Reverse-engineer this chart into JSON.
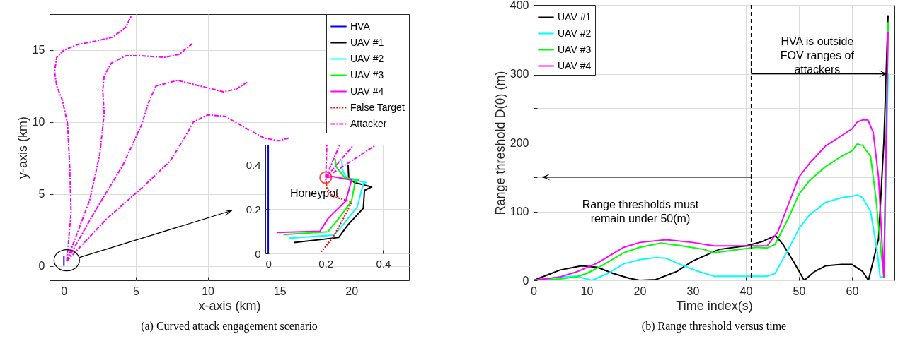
{
  "chart_data": [
    {
      "type": "line",
      "title": "(a) Curved attack engagement scenario",
      "xlabel": "x-axis (km)",
      "ylabel": "y-axis (km)",
      "xlim": [
        -1,
        24
      ],
      "ylim": [
        -1,
        17.5
      ],
      "xticks": [
        0,
        5,
        10,
        15,
        20
      ],
      "yticks": [
        0,
        5,
        10,
        15
      ],
      "grid": true,
      "legend": "top right",
      "series": [
        {
          "name": "HVA",
          "color": "#0000ff",
          "line_style": "solid",
          "x": [
            0,
            0
          ],
          "values": [
            0,
            0.7
          ]
        },
        {
          "name": "UAV #1",
          "color": "#000000",
          "line_style": "solid"
        },
        {
          "name": "UAV #2",
          "color": "#00ffff",
          "line_style": "solid"
        },
        {
          "name": "UAV #3",
          "color": "#00ff00",
          "line_style": "solid"
        },
        {
          "name": "UAV #4",
          "color": "#ff00ff",
          "line_style": "solid"
        },
        {
          "name": "False Target",
          "color": "#ff0000",
          "line_style": "dotted"
        },
        {
          "name": "Attacker",
          "color": "#ff00ff",
          "line_style": "dashdot",
          "x": [
            0.2,
            0.5,
            0.4,
            0.25,
            -0.1,
            -0.5,
            -0.65,
            -0.5,
            0,
            1.0,
            2.1,
            3.4,
            4.3,
            4.7
          ],
          "values": [
            0.34,
            3.7,
            7.0,
            9.9,
            11.5,
            12.5,
            13.5,
            14.5,
            15.0,
            15.4,
            15.6,
            15.9,
            16.6,
            17.4
          ]
        },
        {
          "color": "#ff00ff",
          "line_style": "dashdot",
          "x": [
            0.2,
            1.8,
            2.5,
            2.8,
            2.7,
            2.8,
            3.3,
            4.3,
            5.4,
            7.0,
            8.0,
            9.0
          ],
          "values": [
            0.34,
            4.6,
            7.8,
            10.6,
            12.2,
            13.2,
            14.1,
            14.6,
            14.6,
            14.5,
            14.7,
            15.5
          ]
        },
        {
          "color": "#ff00ff",
          "line_style": "dashdot",
          "x": [
            0.2,
            2.1,
            4.1,
            5.4,
            5.9,
            6.4,
            7.9,
            9.5,
            11.1,
            12.0,
            12.8
          ],
          "values": [
            0.34,
            3.7,
            7.0,
            9.8,
            11.4,
            12.5,
            12.9,
            12.5,
            12.1,
            12.3,
            12.8
          ]
        },
        {
          "color": "#ff00ff",
          "line_style": "dashdot",
          "x": [
            0.2,
            3.0,
            5.4,
            7.4,
            8.5,
            9.0,
            10.0,
            11.2,
            12.8,
            13.9,
            14.9,
            15.7
          ],
          "values": [
            0.34,
            3.3,
            5.4,
            7.3,
            9.1,
            10.0,
            10.5,
            10.4,
            9.5,
            8.9,
            8.7,
            8.9
          ]
        }
      ]
    },
    {
      "type": "line",
      "xlim": [
        -0.01,
        0.49
      ],
      "ylim": [
        0,
        0.49
      ],
      "xticks": [
        0,
        0.2,
        0.4
      ],
      "yticks": [
        0,
        0.2,
        0.4
      ],
      "grid": true,
      "annotations": [
        {
          "text": "Honeypot",
          "x": 0.2,
          "y": 0.342
        }
      ],
      "series": [
        {
          "color": "#0000ff",
          "line_style": "solid",
          "x": [
            0,
            0
          ],
          "values": [
            0,
            0.49
          ]
        },
        {
          "color": "#000000",
          "line_style": "solid",
          "x": [
            0.09,
            0.245,
            0.278,
            0.331,
            0.335,
            0.36,
            0.3,
            0.28,
            0.278
          ],
          "values": [
            0.049,
            0.072,
            0.13,
            0.204,
            0.284,
            0.3,
            0.32,
            0.342,
            0.4
          ]
        },
        {
          "color": "#00ffff",
          "line_style": "solid",
          "x": [
            0.074,
            0.229,
            0.261,
            0.31,
            0.331,
            0.34,
            0.274,
            0.257,
            0.257
          ],
          "values": [
            0.069,
            0.083,
            0.13,
            0.21,
            0.315,
            0.32,
            0.336,
            0.379,
            0.42
          ]
        },
        {
          "color": "#00ff00",
          "line_style": "solid",
          "x": [
            0.053,
            0.208,
            0.245,
            0.29,
            0.302,
            0.315,
            0.266,
            0.237,
            0.233
          ],
          "values": [
            0.085,
            0.098,
            0.157,
            0.236,
            0.32,
            0.331,
            0.342,
            0.389,
            0.426
          ]
        },
        {
          "color": "#ff00ff",
          "line_style": "solid",
          "x": [
            0.029,
            0.18,
            0.208,
            0.27,
            0.29,
            0.225,
            0.2
          ],
          "values": [
            0.095,
            0.1,
            0.157,
            0.236,
            0.331,
            0.347,
            0.342
          ]
        },
        {
          "color": "#ff0000",
          "line_style": "dotted",
          "x": [
            0,
            0.18,
            0.225,
            0.257,
            0.29,
            0.27,
            0.225,
            0.204,
            0.2
          ],
          "values": [
            0,
            0,
            0.072,
            0.146,
            0.23,
            0.24,
            0.257,
            0.294,
            0.336
          ]
        },
        {
          "color": "#ff00ff",
          "line_style": "dashdot",
          "x": [
            0.2,
            0.204
          ],
          "values": [
            0.342,
            0.49
          ]
        },
        {
          "color": "#ff00ff",
          "line_style": "dashdot",
          "x": [
            0.2,
            0.249
          ],
          "values": [
            0.342,
            0.49
          ]
        },
        {
          "color": "#ff00ff",
          "line_style": "dashdot",
          "x": [
            0.2,
            0.298
          ],
          "values": [
            0.342,
            0.49
          ]
        },
        {
          "color": "#ff00ff",
          "line_style": "dashdot",
          "x": [
            0.2,
            0.376
          ],
          "values": [
            0.342,
            0.49
          ]
        }
      ]
    },
    {
      "type": "line",
      "title": "(b) Range threshold versus time",
      "xlabel": "Time index(s)",
      "ylabel": "Range threshold D(θ) (m)",
      "xlim": [
        0,
        68
      ],
      "ylim": [
        0,
        400
      ],
      "xticks": [
        0,
        10,
        20,
        30,
        40,
        50,
        60
      ],
      "yticks": [
        0,
        {
          "value": 50,
          "label": null
        },
        100,
        {
          "value": 150,
          "label": null
        },
        200,
        {
          "value": 250,
          "label": null
        },
        300,
        {
          "value": 350,
          "label": null
        },
        400
      ],
      "grid": true,
      "legend": "top left",
      "ref_lines": [
        {
          "axis": "x",
          "value": 41,
          "color": "#000000",
          "line_style": "dashed"
        }
      ],
      "annotations": [
        "Range thresholds must\nremain under 50(m)",
        "HVA is outside\nFOV ranges of\nattackers"
      ],
      "series": [
        {
          "name": "UAV #1",
          "color": "#000000",
          "x": [
            0,
            5,
            9,
            12,
            15,
            18,
            20,
            23,
            27,
            30,
            35,
            40,
            43,
            45.6,
            47,
            49,
            51,
            53,
            55,
            58,
            60,
            62,
            63.1,
            65,
            66,
            66.8
          ],
          "values": [
            0,
            15,
            21,
            19,
            10,
            3,
            0,
            1,
            13,
            28,
            45,
            50,
            56,
            65,
            52,
            27,
            0,
            13,
            21,
            23,
            23,
            13,
            0,
            60,
            200,
            385
          ]
        },
        {
          "name": "UAV #2",
          "color": "#00ffff",
          "x": [
            0,
            5,
            8,
            10,
            11,
            14,
            17,
            20,
            23,
            25,
            28,
            31,
            34,
            38,
            44,
            45.5,
            48,
            50,
            52,
            55,
            58,
            60,
            61,
            62,
            63.5,
            64.8,
            65.3,
            66,
            66.8
          ],
          "values": [
            0,
            5,
            6,
            2,
            0,
            10,
            24,
            30,
            33,
            32,
            22,
            13,
            6,
            6,
            6,
            10,
            45,
            75,
            95,
            113,
            120,
            122,
            124,
            120,
            100,
            40,
            5,
            5,
            300
          ]
        },
        {
          "name": "UAV #3",
          "color": "#00ff00",
          "x": [
            0,
            5,
            8,
            10,
            13,
            17,
            20,
            24,
            28,
            32,
            34,
            38,
            42,
            44,
            45.5,
            48,
            50,
            52,
            55,
            58,
            60,
            61,
            62,
            63.5,
            64.5,
            65.5,
            66,
            66.8
          ],
          "values": [
            0,
            2,
            5,
            10,
            22,
            40,
            48,
            54,
            50,
            45,
            40,
            44,
            48,
            47,
            52,
            90,
            125,
            145,
            165,
            180,
            188,
            198,
            196,
            180,
            120,
            40,
            5,
            375
          ]
        },
        {
          "name": "UAV #4",
          "color": "#ff00ff",
          "x": [
            0,
            5,
            8,
            12,
            17,
            20,
            25,
            30,
            34,
            40,
            44,
            46,
            48,
            50,
            52,
            55,
            58,
            60,
            61,
            62,
            63,
            64,
            65,
            66,
            66.8
          ],
          "values": [
            0,
            5,
            12,
            25,
            48,
            55,
            59,
            55,
            50,
            50,
            50,
            70,
            110,
            150,
            170,
            195,
            210,
            220,
            230,
            233,
            233,
            215,
            150,
            5,
            360
          ]
        }
      ]
    }
  ]
}
